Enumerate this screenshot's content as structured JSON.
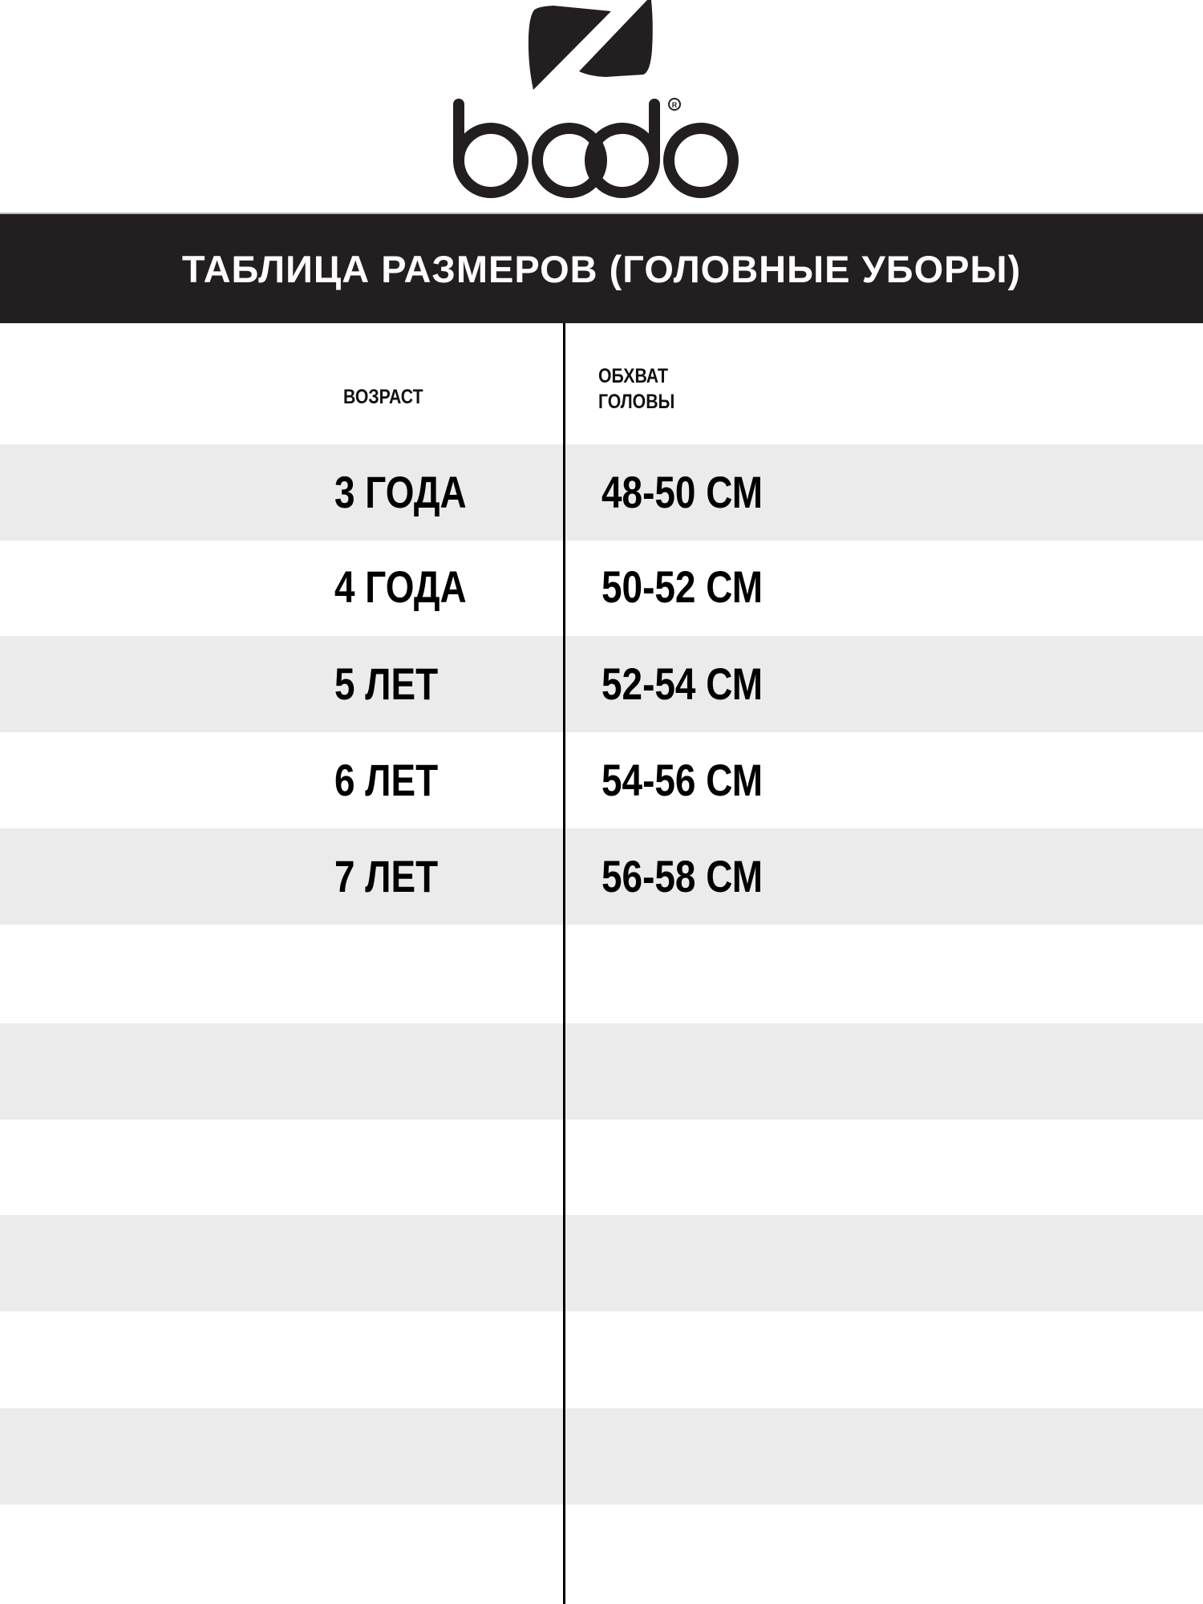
{
  "brand": {
    "name": "bodo",
    "registered": "®"
  },
  "title": "ТАБЛИЦА РАЗМЕРОВ (ГОЛОВНЫЕ УБОРЫ)",
  "table": {
    "headers": {
      "age": "ВОЗРАСТ",
      "head_circumference_line1": "ОБХВАТ",
      "head_circumference_line2": "ГОЛОВЫ"
    },
    "rows": [
      {
        "age": "3 ГОДА",
        "size": "48-50 СМ"
      },
      {
        "age": "4 ГОДА",
        "size": "50-52 СМ"
      },
      {
        "age": "5 ЛЕТ",
        "size": "52-54 СМ"
      },
      {
        "age": "6 ЛЕТ",
        "size": "54-56 СМ"
      },
      {
        "age": "7 ЛЕТ",
        "size": "56-58 СМ"
      }
    ]
  },
  "colors": {
    "band": "#231f20",
    "stripe": "#ebebeb",
    "text": "#000000"
  }
}
